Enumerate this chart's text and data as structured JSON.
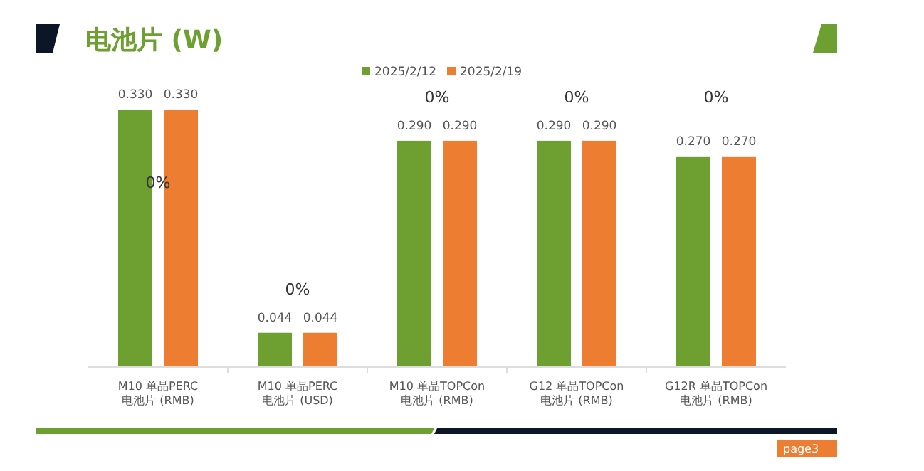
{
  "chart_data": {
    "type": "bar",
    "title": "电池片 (W)",
    "categories": [
      "M10 单晶PERC\n电池片 (RMB)",
      "M10 单晶PERC\n电池片 (USD)",
      "M10 单晶TOPCon\n电池片 (RMB)",
      "G12 单晶TOPCon\n电池片 (RMB)",
      "G12R 单晶TOPCon\n电池片 (RMB)"
    ],
    "series": [
      {
        "name": "2025/2/12",
        "color": "#6d9f31",
        "values": [
          0.33,
          0.044,
          0.29,
          0.29,
          0.27
        ],
        "value_labels": [
          "0.330",
          "0.044",
          "0.290",
          "0.290",
          "0.270"
        ]
      },
      {
        "name": "2025/2/19",
        "color": "#ed7d31",
        "values": [
          0.33,
          0.044,
          0.29,
          0.29,
          0.27
        ],
        "value_labels": [
          "0.330",
          "0.044",
          "0.290",
          "0.290",
          "0.270"
        ]
      }
    ],
    "legend": "top",
    "annotations": [
      "0%",
      "0%",
      "0%",
      "0%",
      "0%",
      "page3"
    ]
  }
}
